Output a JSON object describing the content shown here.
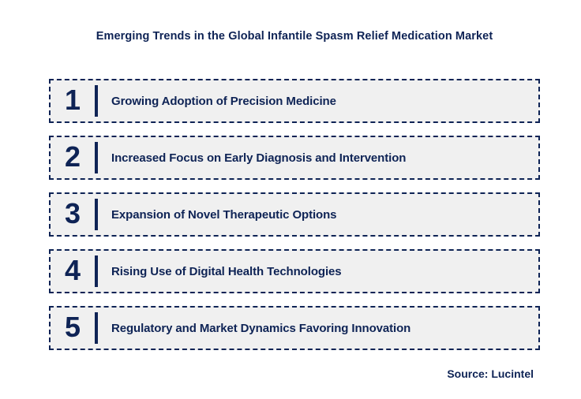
{
  "title": "Emerging Trends in the Global Infantile Spasm Relief Medication Market",
  "source": "Source: Lucintel",
  "colors": {
    "navy": "#0E2355",
    "box_bg": "#F0F0F0",
    "page_bg": "#FFFFFF"
  },
  "trends": [
    {
      "number": "1",
      "label": "Growing Adoption of Precision Medicine"
    },
    {
      "number": "2",
      "label": "Increased Focus on Early Diagnosis and Intervention"
    },
    {
      "number": "3",
      "label": "Expansion of Novel Therapeutic Options"
    },
    {
      "number": "4",
      "label": "Rising Use of Digital Health Technologies"
    },
    {
      "number": "5",
      "label": "Regulatory and Market Dynamics Favoring Innovation"
    }
  ]
}
